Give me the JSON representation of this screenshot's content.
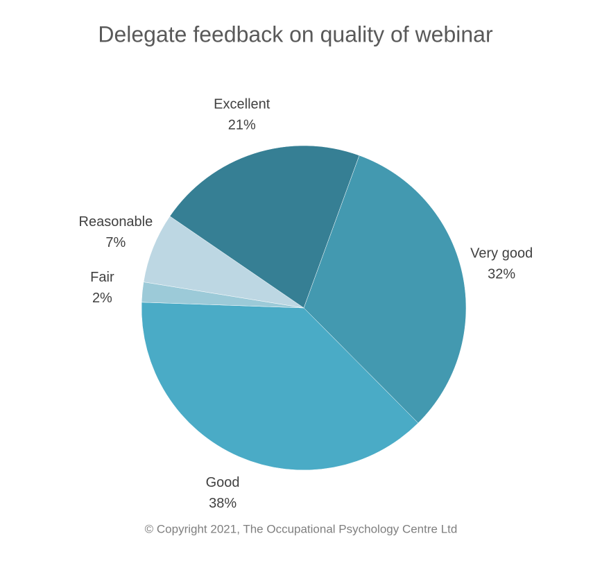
{
  "chart_data": {
    "type": "pie",
    "title": "Delegate feedback on quality of webinar",
    "categories": [
      "Very good",
      "Good",
      "Fair",
      "Reasonable",
      "Excellent"
    ],
    "values": [
      32,
      38,
      2,
      7,
      21
    ],
    "value_labels": [
      "32%",
      "38%",
      "2%",
      "7%",
      "21%"
    ],
    "colors": [
      "#4399b0",
      "#4aabc6",
      "#9ccad8",
      "#bdd7e3",
      "#367f94"
    ],
    "start_angle": 20,
    "direction": "clockwise",
    "source": "© Copyright 2021, The Occupational Psychology Centre Ltd"
  }
}
